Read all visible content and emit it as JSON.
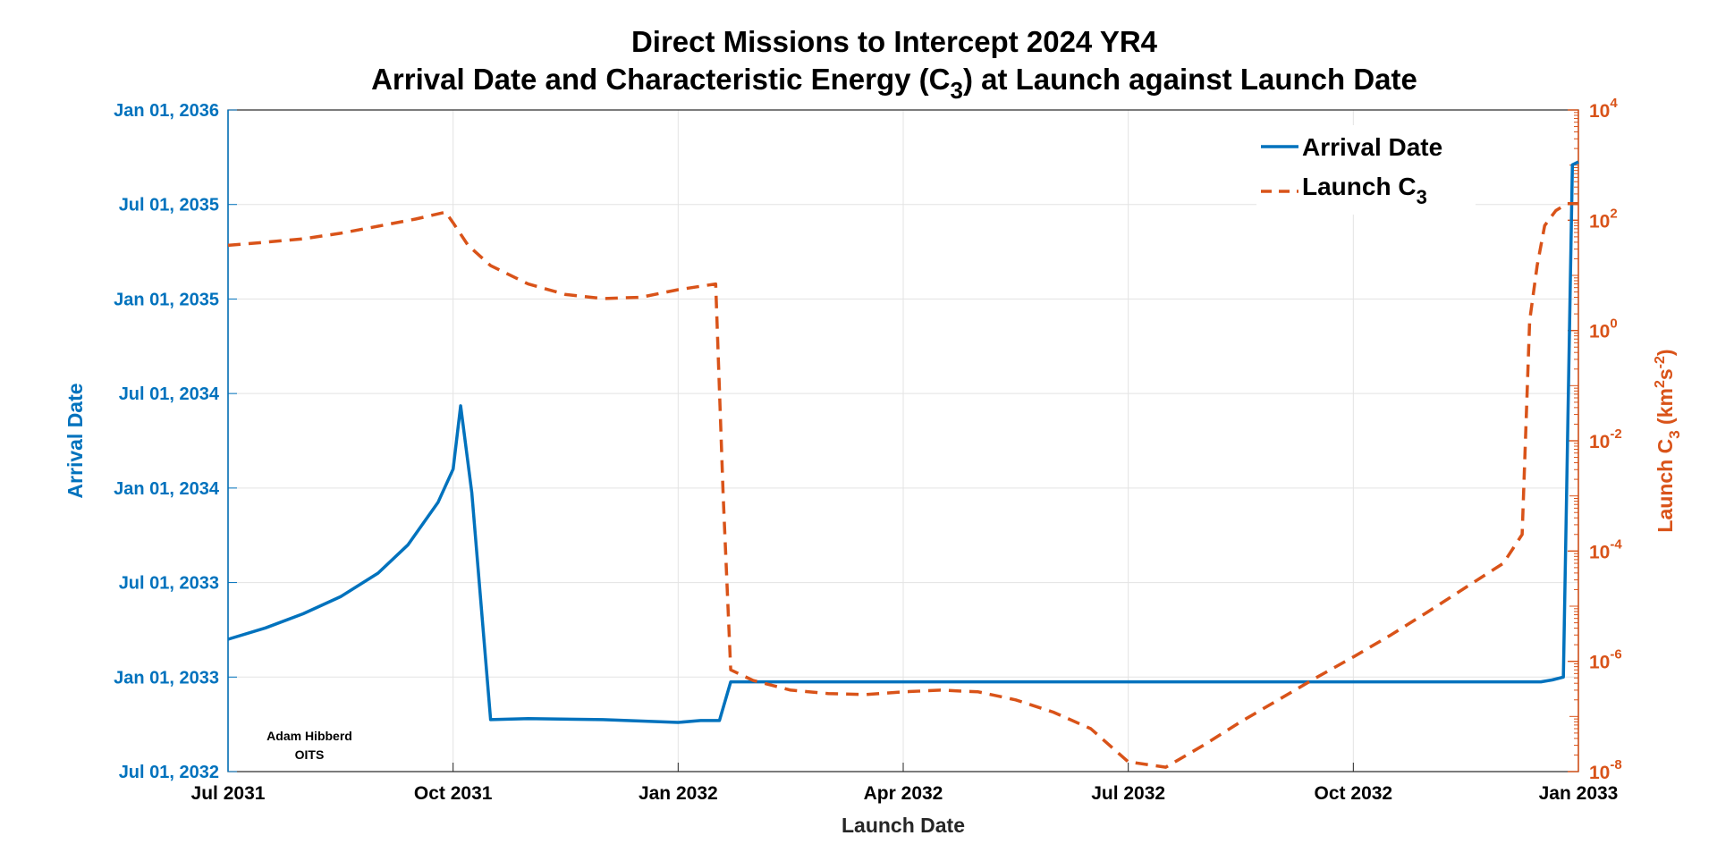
{
  "chart_data": {
    "type": "line",
    "title_line1": "Direct Missions to Intercept 2024 YR4",
    "title_line2_prefix": "Arrival Date and Characteristic Energy (C",
    "title_line2_sub": "3",
    "title_line2_suffix": ") at Launch against Launch Date",
    "xlabel": "Launch Date",
    "ylabel_left": "Arrival Date",
    "ylabel_right_prefix": "Launch C",
    "ylabel_right_sub": "3",
    "ylabel_right_unit_open": " (km",
    "ylabel_right_unit_sup1": "2",
    "ylabel_right_unit_mid": "s",
    "ylabel_right_unit_sup2": "-2",
    "ylabel_right_unit_close": ")",
    "x_ticks": [
      "Jul 2031",
      "Oct 2031",
      "Jan 2032",
      "Apr 2032",
      "Jul 2032",
      "Oct 2032",
      "Jan 2033"
    ],
    "xlim_months": [
      0,
      18
    ],
    "y_left_ticks": [
      "Jul 01, 2032",
      "Jan 01, 2033",
      "Jul 01, 2033",
      "Jan 01, 2034",
      "Jul 01, 2034",
      "Jan 01, 2035",
      "Jul 01, 2035",
      "Jan 01, 2036"
    ],
    "ylim_left_halfyears": [
      0,
      7
    ],
    "y_right_ticks": [
      {
        "base": "10",
        "exp": "-8"
      },
      {
        "base": "10",
        "exp": "-6"
      },
      {
        "base": "10",
        "exp": "-4"
      },
      {
        "base": "10",
        "exp": "-2"
      },
      {
        "base": "10",
        "exp": "0"
      },
      {
        "base": "10",
        "exp": "2"
      },
      {
        "base": "10",
        "exp": "4"
      }
    ],
    "ylim_right_log10": [
      -8,
      4
    ],
    "grid": true,
    "legend_position": "top-right",
    "series": [
      {
        "name": "Arrival Date",
        "style": "solid",
        "color": "#0072BD",
        "axis": "left",
        "x_months": [
          0,
          0.5,
          1.0,
          1.5,
          2.0,
          2.4,
          2.8,
          3.0,
          3.1,
          3.25,
          3.5,
          4.0,
          5.0,
          6.0,
          6.3,
          6.55,
          6.7,
          8.0,
          10.0,
          12.0,
          14.0,
          16.0,
          17.5,
          17.65,
          17.8,
          17.92,
          18.0
        ],
        "values": [
          1.4,
          1.52,
          1.67,
          1.85,
          2.1,
          2.4,
          2.85,
          3.2,
          3.87,
          2.95,
          0.55,
          0.56,
          0.55,
          0.52,
          0.54,
          0.54,
          0.95,
          0.95,
          0.95,
          0.95,
          0.95,
          0.95,
          0.95,
          0.97,
          1.0,
          6.42,
          6.45
        ]
      },
      {
        "name": "Launch C",
        "name_sub": "3",
        "style": "dashed",
        "color": "#D95319",
        "axis": "right",
        "x_months": [
          0,
          0.5,
          1.0,
          1.5,
          2.0,
          2.5,
          2.9,
          3.0,
          3.2,
          3.5,
          4.0,
          4.5,
          5.0,
          5.5,
          6.0,
          6.5,
          6.6,
          6.7,
          7.0,
          7.5,
          8.0,
          8.5,
          9.0,
          9.5,
          10.0,
          10.5,
          11.0,
          11.5,
          12.0,
          12.5,
          13.0,
          13.5,
          14.0,
          14.5,
          15.0,
          15.5,
          16.0,
          16.5,
          17.0,
          17.25,
          17.35,
          17.45,
          17.55,
          17.7,
          17.85,
          18.0
        ],
        "values": [
          35,
          40,
          46,
          58,
          78,
          105,
          140,
          90,
          35,
          15,
          7,
          4.5,
          3.8,
          4.0,
          5.5,
          7.0,
          0.001,
          7e-07,
          4.5e-07,
          3e-07,
          2.6e-07,
          2.5e-07,
          2.8e-07,
          3e-07,
          2.8e-07,
          2e-07,
          1.2e-07,
          6e-08,
          1.5e-08,
          1.2e-08,
          3e-08,
          8e-08,
          2e-07,
          5e-07,
          1.2e-06,
          3e-06,
          8e-06,
          2.2e-05,
          6e-05,
          0.0002,
          1.5,
          15,
          80,
          150,
          200,
          200
        ]
      }
    ],
    "credit_line1": "Adam Hibberd",
    "credit_line2": "OITS"
  }
}
